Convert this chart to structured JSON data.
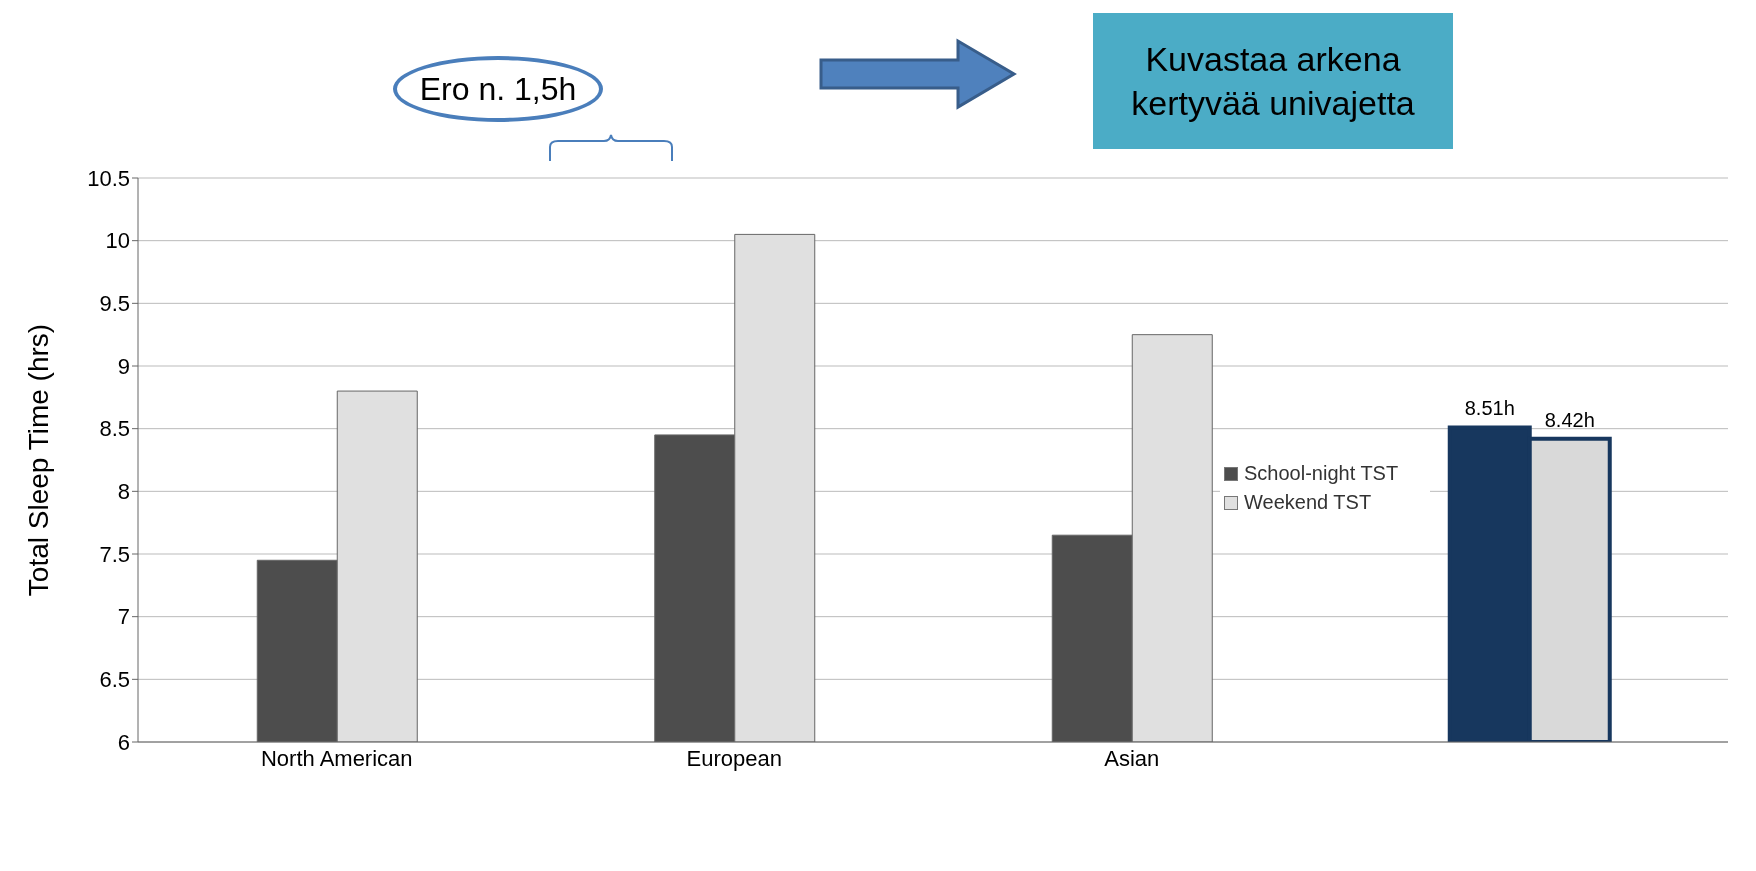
{
  "chart_data": {
    "type": "bar",
    "categories": [
      "North American",
      "European",
      "Asian",
      null
    ],
    "series": [
      {
        "name": "School-night TST",
        "color": "#4d4d4d",
        "colors": [
          "#4d4d4d",
          "#4d4d4d",
          "#4d4d4d",
          "#17375e"
        ],
        "values": [
          7.45,
          8.45,
          7.65,
          8.51
        ],
        "value_labels": [
          null,
          null,
          null,
          "8.51h"
        ]
      },
      {
        "name": "Weekend TST",
        "color": "#e0e0e0",
        "colors": [
          "#e0e0e0",
          "#e0e0e0",
          "#e0e0e0",
          "#d9d9d9"
        ],
        "values": [
          8.8,
          10.05,
          9.25,
          8.42
        ],
        "value_labels": [
          null,
          null,
          null,
          "8.42h"
        ]
      }
    ],
    "ylabel": "Total Sleep Time (hrs)",
    "ylim": [
      6,
      10.5
    ],
    "yticks": [
      6,
      6.5,
      7,
      7.5,
      8,
      8.5,
      9,
      9.5,
      10,
      10.5
    ],
    "grid": "y",
    "legend": "right",
    "annotations": [
      "Ero n. 1,5h",
      "Kuvastaa arkena kertyvää univajetta"
    ]
  }
}
